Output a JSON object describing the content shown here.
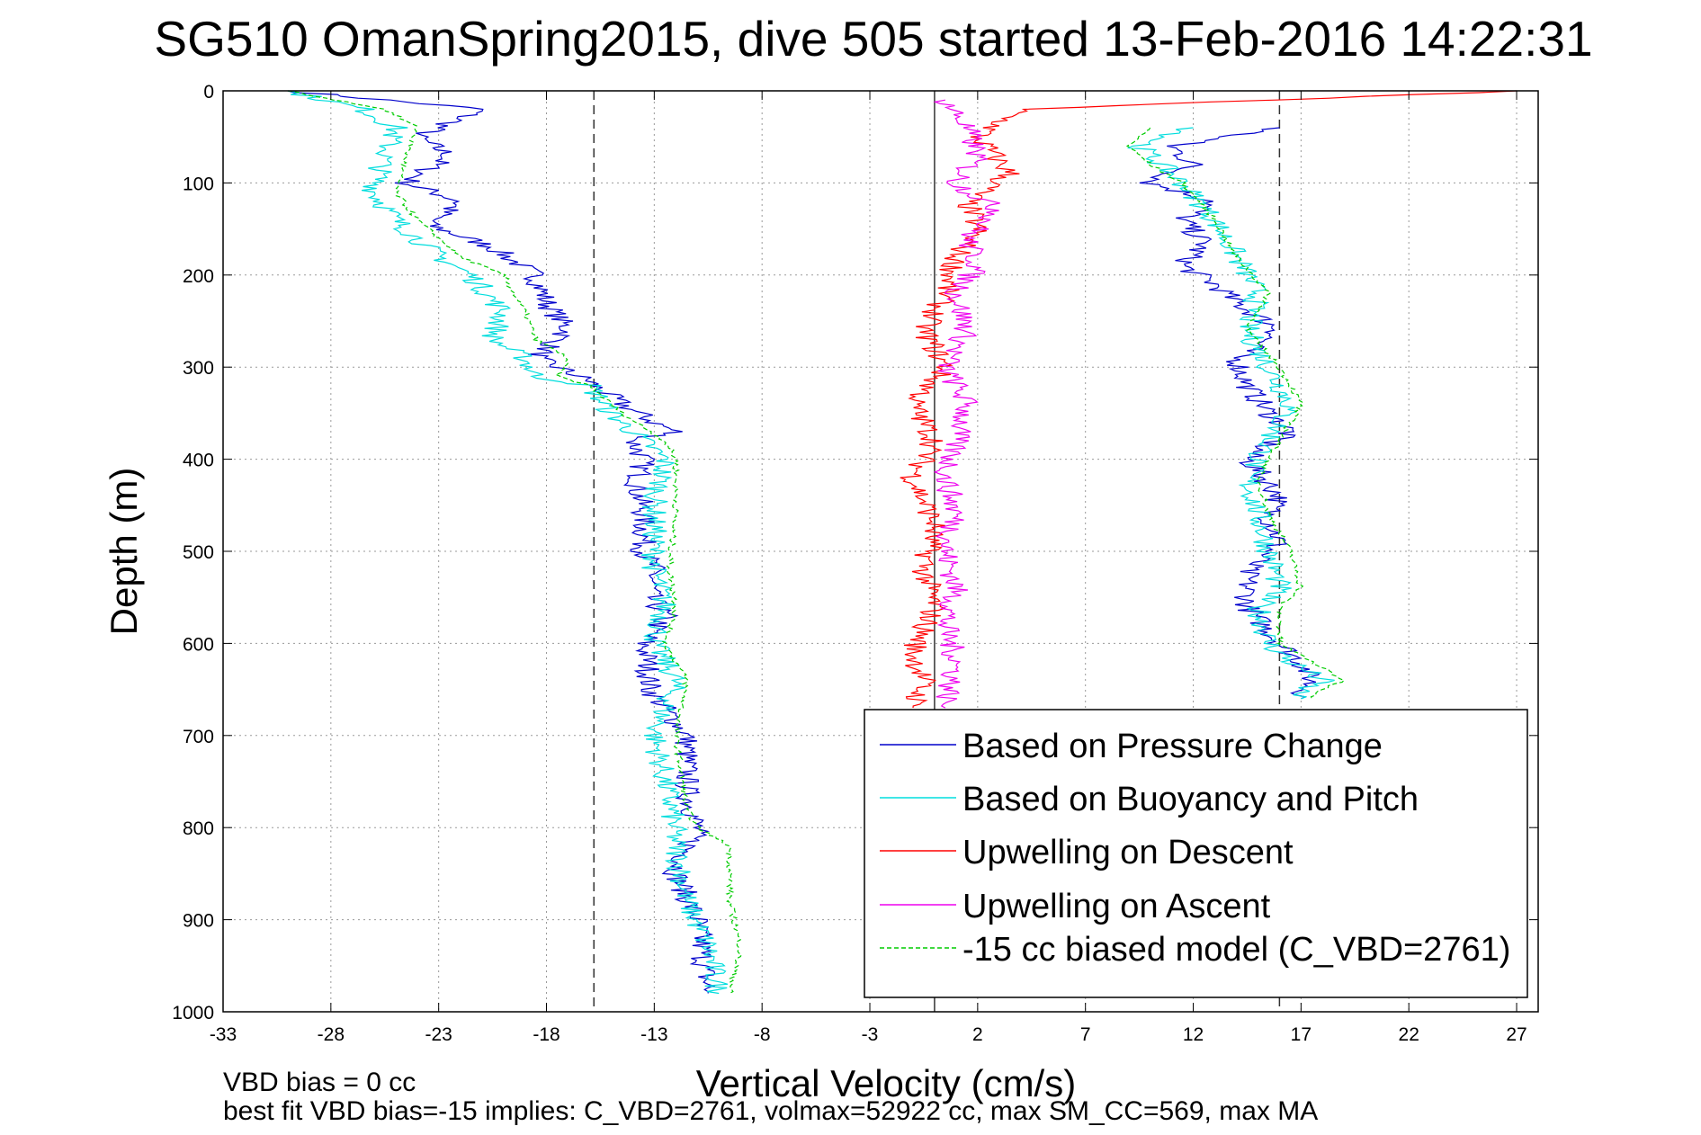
{
  "chart_data": {
    "type": "line",
    "title": "SG510 OmanSpring2015, dive 505 started 13-Feb-2016 14:22:31",
    "xlabel": "Vertical Velocity (cm/s)",
    "ylabel": "Depth (m)",
    "xlim": [
      -33,
      28
    ],
    "ylim": [
      0,
      1000
    ],
    "y_reversed": true,
    "x_ticks": [
      "-33",
      "-28",
      "-23",
      "-18",
      "-13",
      "-8",
      "-3",
      "2",
      "7",
      "12",
      "17",
      "22",
      "27"
    ],
    "y_ticks": [
      "0",
      "100",
      "200",
      "300",
      "400",
      "500",
      "600",
      "700",
      "800",
      "900",
      "1000"
    ],
    "grid": true,
    "legend_position": "bottom-right",
    "reference_lines": [
      {
        "x": -15.8,
        "style": "dashed"
      },
      {
        "x": 0,
        "style": "solid"
      },
      {
        "x": 16.0,
        "style": "dashed"
      }
    ],
    "annotations": [
      "VBD bias = 0 cc",
      "best fit VBD bias=-15 implies: C_VBD=2761, volmax=52922 cc, max SM_CC=569, max MA"
    ],
    "series": [
      {
        "name": "Based on Pressure Change",
        "color": "#0000cc",
        "style": "solid",
        "segments": [
          {
            "x": [
              -30,
              -21,
              -24,
              -22.5,
              -24.5,
              -22,
              -23.5,
              -20.5,
              -18.5,
              -18,
              -17,
              -18.5,
              -16,
              -15.8,
              -14.5,
              -13,
              -12,
              -14,
              -13.5,
              -13.8,
              -13.5,
              -13.5,
              -13,
              -13.2,
              -12.5,
              -13.5,
              -13.3,
              -13.2,
              -11.5,
              -11.5,
              -11,
              -12,
              -11,
              -10.5
            ],
            "y": [
              0,
              20,
              50,
              70,
              100,
              120,
              145,
              170,
              200,
              230,
              260,
              290,
              315,
              320,
              340,
              360,
              370,
              380,
              400,
              430,
              460,
              500,
              520,
              550,
              570,
              600,
              620,
              650,
              700,
              760,
              800,
              850,
              900,
              980
            ]
          },
          {
            "x": [
              16,
              11,
              12,
              10,
              13,
              11.5,
              12.5,
              11.5,
              13,
              14,
              16,
              14,
              14.5,
              15.5,
              16.5,
              15,
              14.5,
              16,
              15.5,
              16,
              14.5,
              14.5,
              16,
              17,
              17.5,
              17
            ],
            "y": [
              40,
              60,
              80,
              100,
              120,
              140,
              165,
              190,
              210,
              230,
              260,
              290,
              320,
              350,
              370,
              390,
              400,
              440,
              460,
              490,
              520,
              560,
              600,
              620,
              640,
              660
            ]
          }
        ]
      },
      {
        "name": "Based on Buoyancy and Pitch",
        "color": "#00dddd",
        "style": "solid",
        "segments": [
          {
            "x": [
              -30,
              -26.5,
              -25,
              -25.5,
              -26,
              -25,
              -24,
              -23,
              -21.5,
              -20,
              -20.5,
              -19,
              -18.5,
              -16,
              -15,
              -13.5,
              -12.5,
              -13,
              -13,
              -12.5,
              -13,
              -12,
              -13,
              -12.2,
              -12,
              -11.5,
              -10.5,
              -10
            ],
            "y": [
              0,
              20,
              40,
              70,
              110,
              140,
              160,
              180,
              200,
              240,
              270,
              290,
              310,
              320,
              350,
              380,
              400,
              450,
              520,
              560,
              600,
              640,
              700,
              780,
              820,
              880,
              930,
              980
            ]
          },
          {
            "x": [
              12,
              9.5,
              10.5,
              11.5,
              13,
              14,
              15,
              14.5,
              15.5,
              16.5,
              15.5,
              14.5,
              15,
              15.5,
              16,
              15,
              15.5,
              16.5,
              18,
              17,
              17
            ],
            "y": [
              40,
              60,
              80,
              100,
              140,
              180,
              220,
              260,
              300,
              340,
              380,
              420,
              460,
              500,
              540,
              560,
              600,
              620,
              640,
              650,
              660
            ]
          }
        ]
      },
      {
        "name": "Upwelling on Descent",
        "color": "#ff0000",
        "style": "solid",
        "segments": [
          {
            "x": [
              27,
              4,
              2,
              3.5,
              1.5,
              2,
              1,
              0.5,
              -0.5,
              0.5,
              -1,
              0,
              -1,
              0,
              -0.5,
              0,
              -1,
              -0.5,
              -1
            ],
            "y": [
              0,
              20,
              50,
              90,
              120,
              150,
              180,
              220,
              260,
              300,
              340,
              380,
              420,
              470,
              520,
              560,
              610,
              640,
              670
            ]
          }
        ]
      },
      {
        "name": "Upwelling on Ascent",
        "color": "#ee00ee",
        "style": "solid",
        "segments": [
          {
            "x": [
              0.5,
              1.5,
              2,
              1,
              3,
              1.5,
              2,
              1,
              1.5,
              0.5,
              1.5,
              1,
              0.5,
              1,
              0.5,
              1,
              0.5,
              1,
              0.5
            ],
            "y": [
              10,
              40,
              70,
              100,
              130,
              160,
              190,
              220,
              260,
              300,
              340,
              380,
              420,
              460,
              500,
              540,
              580,
              620,
              670
            ]
          }
        ]
      },
      {
        "name": "-15 cc biased model (C_VBD=2761)",
        "color": "#00cc00",
        "style": "dashed",
        "segments": [
          {
            "x": [
              -30,
              -25.5,
              -24,
              -24.5,
              -25,
              -24,
              -23,
              -22,
              -20,
              -19,
              -18.5,
              -17,
              -17.5,
              -16,
              -14.5,
              -12.5,
              -12,
              -12,
              -12.3,
              -12,
              -12.5,
              -11.5,
              -12,
              -11.5,
              -11,
              -9.5,
              -9.5,
              -9,
              -9.5
            ],
            "y": [
              0,
              20,
              40,
              70,
              110,
              140,
              160,
              180,
              200,
              240,
              270,
              290,
              310,
              320,
              350,
              380,
              400,
              450,
              520,
              560,
              600,
              640,
              700,
              780,
              800,
              820,
              880,
              930,
              980
            ]
          },
          {
            "x": [
              10,
              9,
              10,
              11.5,
              13,
              14,
              15.5,
              14.5,
              16,
              17,
              16,
              15,
              15.5,
              16.5,
              17,
              16,
              16,
              17.5,
              19,
              18,
              17.5
            ],
            "y": [
              40,
              60,
              80,
              100,
              140,
              180,
              220,
              260,
              300,
              340,
              380,
              420,
              460,
              500,
              540,
              560,
              600,
              620,
              640,
              650,
              660
            ]
          }
        ]
      }
    ]
  }
}
